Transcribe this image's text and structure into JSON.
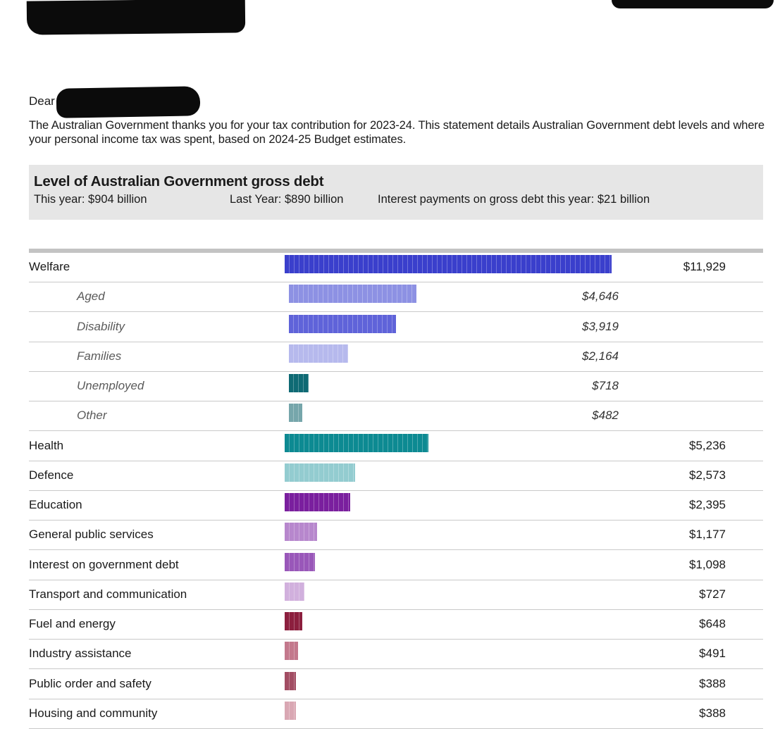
{
  "letter": {
    "salutation": "Dear",
    "intro": "The Australian Government thanks you for your tax contribution for 2023-24. This statement details Australian Government debt levels and where your personal income tax was spent, based on 2024-25 Budget estimates."
  },
  "debt": {
    "title": "Level of Australian Government gross debt",
    "this_year": "This year: $904 billion",
    "last_year": "Last Year: $890 billion",
    "interest": "Interest payments on gross debt this year: $21 billion"
  },
  "chart_data": {
    "type": "bar",
    "orientation": "horizontal",
    "title": "",
    "categories": [
      "Welfare",
      "Aged",
      "Disability",
      "Families",
      "Unemployed",
      "Other",
      "Health",
      "Defence",
      "Education",
      "General public services",
      "Interest on government debt",
      "Transport and communication",
      "Fuel and energy",
      "Industry assistance",
      "Public order and safety",
      "Housing and community"
    ],
    "values": [
      11929,
      4646,
      3919,
      2164,
      718,
      482,
      5236,
      2573,
      2395,
      1177,
      1098,
      727,
      648,
      491,
      388,
      388
    ],
    "value_labels": [
      "$11,929",
      "$4,646",
      "$3,919",
      "$2,164",
      "$718",
      "$482",
      "$5,236",
      "$2,573",
      "$2,395",
      "$1,177",
      "$1,098",
      "$727",
      "$648",
      "$491",
      "$388",
      "$388"
    ],
    "subcategory": [
      false,
      true,
      true,
      true,
      true,
      true,
      false,
      false,
      false,
      false,
      false,
      false,
      false,
      false,
      false,
      false
    ],
    "colors": [
      "#3a3fcc",
      "#8d91e3",
      "#5f63d9",
      "#b6b9ed",
      "#0f6a74",
      "#76a6ab",
      "#0d8a92",
      "#93ccd0",
      "#7a1f9e",
      "#b787cd",
      "#9957b9",
      "#d1b0dd",
      "#8c1f3e",
      "#c3788c",
      "#a24d63",
      "#d9a7b3"
    ]
  }
}
